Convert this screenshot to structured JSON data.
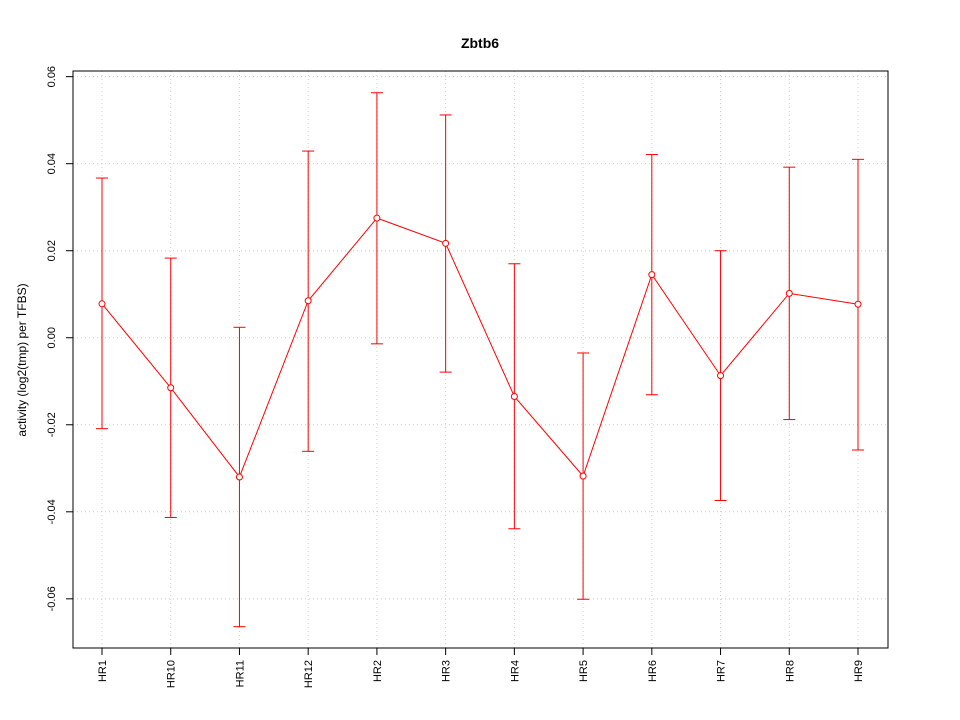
{
  "chart_data": {
    "type": "line",
    "title": "Zbtb6",
    "xlabel": "",
    "ylabel": "activity (log2(tmp) per TFBS)",
    "categories": [
      "HR1",
      "HR10",
      "HR11",
      "HR12",
      "HR2",
      "HR3",
      "HR4",
      "HR5",
      "HR6",
      "HR7",
      "HR8",
      "HR9"
    ],
    "series": [
      {
        "values": [
          0.0078,
          -0.0115,
          -0.032,
          0.0085,
          0.0275,
          0.0217,
          -0.0135,
          -0.0318,
          0.0145,
          -0.0087,
          0.0102,
          0.0077
        ],
        "upper": [
          0.0367,
          0.0183,
          0.0024,
          0.0429,
          0.0563,
          0.0512,
          0.017,
          -0.0035,
          0.0421,
          0.02,
          0.0392,
          0.041
        ],
        "lower": [
          -0.0209,
          -0.0413,
          -0.0664,
          -0.0261,
          -0.0014,
          -0.0079,
          -0.0439,
          -0.0601,
          -0.0131,
          -0.0374,
          -0.0188,
          -0.0258
        ]
      }
    ],
    "yticks": [
      -0.06,
      -0.04,
      -0.02,
      0.0,
      0.02,
      0.04,
      0.06
    ],
    "ytick_labels": [
      "-0.06",
      "-0.04",
      "-0.02",
      "0.00",
      "0.02",
      "0.04",
      "0.06"
    ],
    "ylim": [
      -0.0713,
      0.0613
    ],
    "grid": true,
    "colors": {
      "series": "#ff0000",
      "grid": "#cccccc",
      "axis": "#000000"
    }
  }
}
